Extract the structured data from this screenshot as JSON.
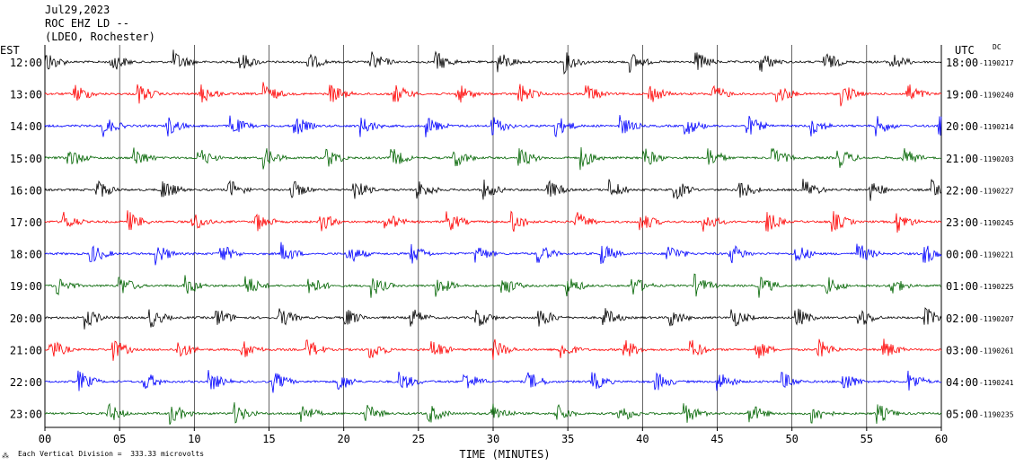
{
  "header": {
    "date": "Jul29,2023",
    "station": "ROC EHZ LD --",
    "network": "(LDEO, Rochester)"
  },
  "left_zone": "EST",
  "right_zone": "UTC",
  "dc_label": "DC",
  "footer_note": "Each Vertical Division =  333.33 microvolts",
  "chart_data": {
    "type": "line",
    "subtype": "helicorder",
    "xlabel": "TIME (MINUTES)",
    "xlim": [
      0,
      60
    ],
    "xticks": [
      "00",
      "05",
      "10",
      "15",
      "20",
      "25",
      "30",
      "35",
      "40",
      "45",
      "50",
      "55",
      "60"
    ],
    "grid": "vertical lines every 5 minutes",
    "trace_colors": [
      "#000000",
      "#ff0000",
      "#0000ff",
      "#006400"
    ],
    "rows": [
      {
        "est": "12:00",
        "utc": "18:00",
        "dc": "-1190217"
      },
      {
        "est": "13:00",
        "utc": "19:00",
        "dc": "-1190240"
      },
      {
        "est": "14:00",
        "utc": "20:00",
        "dc": "-1190214"
      },
      {
        "est": "15:00",
        "utc": "21:00",
        "dc": "-1190203"
      },
      {
        "est": "16:00",
        "utc": "22:00",
        "dc": "-1190227"
      },
      {
        "est": "17:00",
        "utc": "23:00",
        "dc": "-1190245"
      },
      {
        "est": "18:00",
        "utc": "00:00",
        "dc": "-1190221"
      },
      {
        "est": "19:00",
        "utc": "01:00",
        "dc": "-1190225"
      },
      {
        "est": "20:00",
        "utc": "02:00",
        "dc": "-1190207"
      },
      {
        "est": "21:00",
        "utc": "03:00",
        "dc": "-1190261"
      },
      {
        "est": "22:00",
        "utc": "04:00",
        "dc": "-1190241"
      },
      {
        "est": "23:00",
        "utc": "05:00",
        "dc": "-1190235"
      }
    ]
  }
}
